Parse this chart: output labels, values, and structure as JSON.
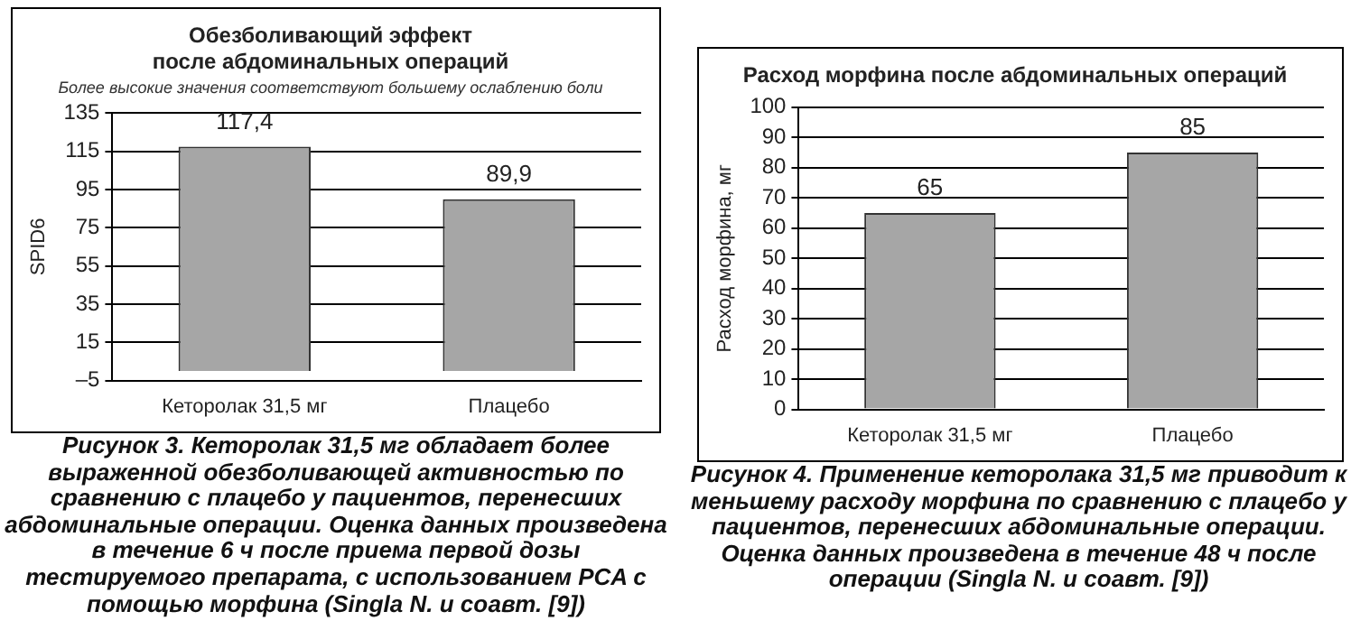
{
  "chart_data": [
    {
      "type": "bar",
      "title": "Обезболивающий эффект\nпосле абдоминальных операций",
      "subtitle": "Более высокие значения соответствуют большему ослаблению боли",
      "ylabel": "SPID6",
      "categories": [
        "Кеторолак 31,5 мг",
        "Плацебо"
      ],
      "values": [
        117.4,
        89.9
      ],
      "value_labels": [
        "117,4",
        "89,9"
      ],
      "color": "#a6a6a6",
      "ylim": [
        -5,
        135
      ],
      "yticks": [
        {
          "value": -5,
          "label": "–5"
        },
        15,
        35,
        55,
        75,
        95,
        115,
        135
      ],
      "grid": "y",
      "legend": false,
      "annotations": [
        "Рисунок 3. Кеторолак 31,5 мг обладает более выраженной обезболивающей активностью по сравнению с плацебо у пациентов, перенесших абдоминальные операции. Оценка данных произведена в течение 6 ч после приема первой дозы тестируемого препарата, с использованием PCA с помощью морфина (Singla N. и соавт. [9])"
      ]
    },
    {
      "type": "bar",
      "title": "Расход морфина после абдоминальных операций",
      "ylabel": "Расход морфина, мг",
      "categories": [
        "Кеторолак 31,5 мг",
        "Плацебо"
      ],
      "values": [
        65,
        85
      ],
      "data_labels": true,
      "color": "#a6a6a6",
      "ylim": [
        0,
        100
      ],
      "yticks": [
        0,
        10,
        20,
        30,
        40,
        50,
        60,
        70,
        80,
        90,
        100
      ],
      "grid": "y",
      "legend": false,
      "annotations": [
        "Рисунок 4. Применение кеторолака 31,5 мг приводит к меньшему расходу морфина по сравнению с плацебо у пациентов, перенесших абдоминальные операции. Оценка данных произведена в течение 48 ч после операции (Singla N. и соавт. [9])"
      ]
    }
  ]
}
